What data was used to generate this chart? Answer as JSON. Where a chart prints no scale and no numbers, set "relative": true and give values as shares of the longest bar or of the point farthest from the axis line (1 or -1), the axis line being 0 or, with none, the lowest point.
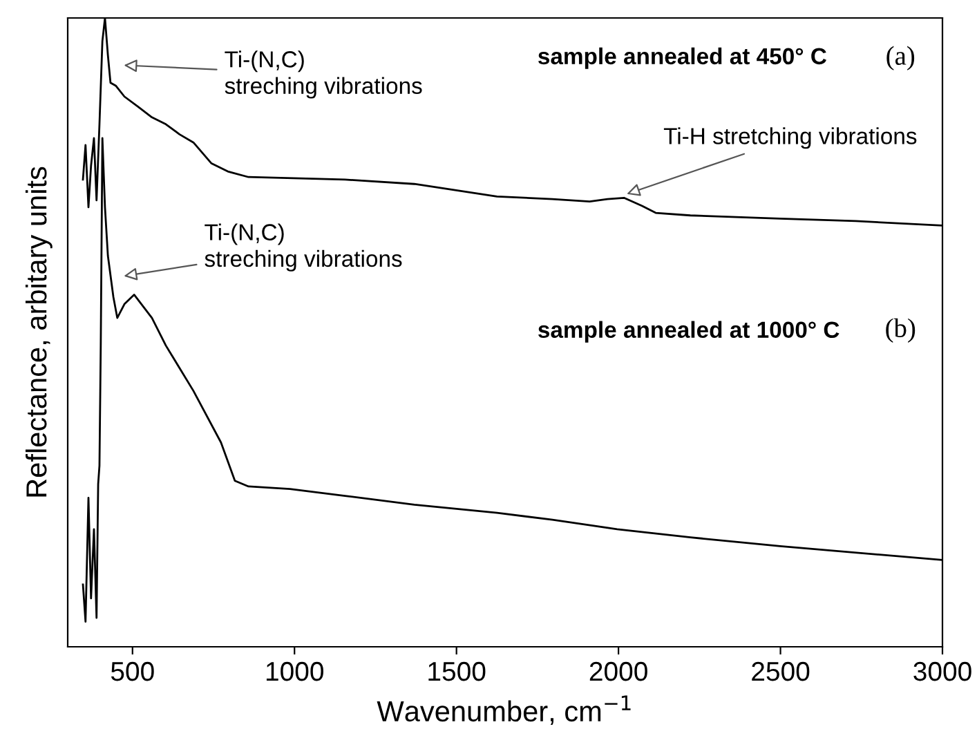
{
  "chart_data": {
    "type": "line",
    "relative": true,
    "xlabel": "Wavenumber, cm$^{−1}$",
    "ylabel": "Reflectance, arbitary units",
    "xlim": [
      300,
      3000
    ],
    "xticks": [
      500,
      1000,
      1500,
      2000,
      2500,
      3000
    ],
    "tick_labels": "x",
    "grid": false,
    "legend": false,
    "marker": "none",
    "line_style": "solid",
    "series": [
      {
        "color": "#000000",
        "x": [
          347,
          355,
          364,
          372,
          381,
          389,
          398,
          407,
          415,
          424,
          432,
          449,
          475,
          517,
          560,
          603,
          645,
          688,
          743,
          794,
          858,
          1156,
          1370,
          1625,
          1796,
          1911,
          1966,
          2017,
          2073,
          2115,
          2222,
          2499,
          2733,
          3000
        ],
        "values": [
          0.743,
          0.798,
          0.699,
          0.765,
          0.809,
          0.71,
          0.831,
          0.963,
          1.0,
          0.941,
          0.897,
          0.892,
          0.875,
          0.859,
          0.842,
          0.831,
          0.815,
          0.802,
          0.769,
          0.756,
          0.747,
          0.743,
          0.736,
          0.716,
          0.712,
          0.708,
          0.712,
          0.714,
          0.701,
          0.69,
          0.686,
          0.681,
          0.677,
          0.67
        ]
      },
      {
        "color": "#000000",
        "x": [
          347,
          355,
          364,
          372,
          381,
          389,
          394,
          398,
          402,
          407,
          415,
          424,
          441,
          453,
          475,
          505,
          560,
          603,
          688,
          773,
          816,
          858,
          986,
          1156,
          1370,
          1625,
          1796,
          1996,
          2222,
          2499,
          3000
        ],
        "values": [
          0.099,
          0.04,
          0.237,
          0.077,
          0.187,
          0.046,
          0.259,
          0.288,
          0.479,
          0.809,
          0.699,
          0.622,
          0.556,
          0.523,
          0.545,
          0.56,
          0.523,
          0.479,
          0.407,
          0.325,
          0.264,
          0.255,
          0.251,
          0.24,
          0.226,
          0.213,
          0.202,
          0.187,
          0.174,
          0.16,
          0.138
        ]
      }
    ],
    "annotations": [
      "Ti-(N,C)\nstreching vibrations",
      "Ti-(N,C)\nstreching vibrations",
      "Ti-H stretching vibrations",
      "sample annealed at 450° C",
      "(a)",
      "sample annealed at 1000° C",
      "(b)"
    ]
  }
}
